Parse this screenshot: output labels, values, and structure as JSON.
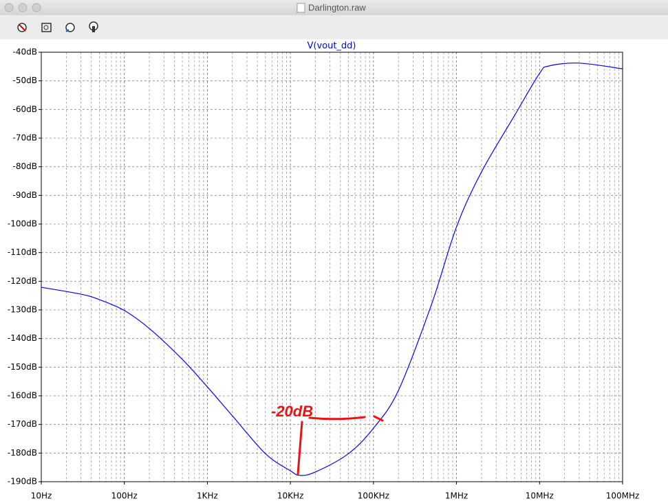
{
  "window_title": "Darlington.raw",
  "chart_data": {
    "type": "line",
    "title": "V(vout_dd)",
    "annotation": "-20dB",
    "annotation_color": "#ee1111",
    "x": [
      10,
      30,
      50,
      100,
      200,
      500,
      1000,
      2000,
      5000,
      10000,
      13000,
      20000,
      50000,
      100000,
      200000,
      500000,
      1000000,
      2000000,
      5000000,
      10000000,
      13000000,
      30000000,
      100000000
    ],
    "series": [
      {
        "name": "V(vout_dd)",
        "color": "#0000ff",
        "values": [
          -122.1,
          -124.5,
          -126.4,
          -130.2,
          -136.5,
          -147.3,
          -156.9,
          -167,
          -180.2,
          -186.2,
          -187.8,
          -186.6,
          -180.2,
          -171.3,
          -158.1,
          -128.1,
          -101,
          -81.8,
          -62.1,
          -47.4,
          -44.8,
          -43.8,
          -45.8
        ]
      }
    ],
    "xlog": true,
    "grid": true,
    "minor_grid": true,
    "xlim": [
      10,
      100000000
    ],
    "ylim": [
      -190,
      -40
    ],
    "xticks": [
      {
        "value": 10,
        "label": "10Hz"
      },
      {
        "value": 100,
        "label": "100Hz"
      },
      {
        "value": 1000,
        "label": "1KHz"
      },
      {
        "value": 10000,
        "label": "10KHz"
      },
      {
        "value": 100000,
        "label": "100KHz"
      },
      {
        "value": 1000000,
        "label": "1MHz"
      },
      {
        "value": 10000000,
        "label": "10MHz"
      },
      {
        "value": 100000000,
        "label": "100MHz"
      }
    ],
    "yticks": [
      {
        "value": -40,
        "label": "-40dB"
      },
      {
        "value": -50,
        "label": "-50dB"
      },
      {
        "value": -60,
        "label": "-60dB"
      },
      {
        "value": -70,
        "label": "-70dB"
      },
      {
        "value": -80,
        "label": "-80dB"
      },
      {
        "value": -90,
        "label": "-90dB"
      },
      {
        "value": -100,
        "label": "-100dB"
      },
      {
        "value": -110,
        "label": "-110dB"
      },
      {
        "value": -120,
        "label": "-120dB"
      },
      {
        "value": -130,
        "label": "-130dB"
      },
      {
        "value": -140,
        "label": "-140dB"
      },
      {
        "value": -150,
        "label": "-150dB"
      },
      {
        "value": -160,
        "label": "-160dB"
      },
      {
        "value": -170,
        "label": "-170dB"
      },
      {
        "value": -180,
        "label": "-180dB"
      },
      {
        "value": -190,
        "label": "-190dB"
      }
    ]
  }
}
